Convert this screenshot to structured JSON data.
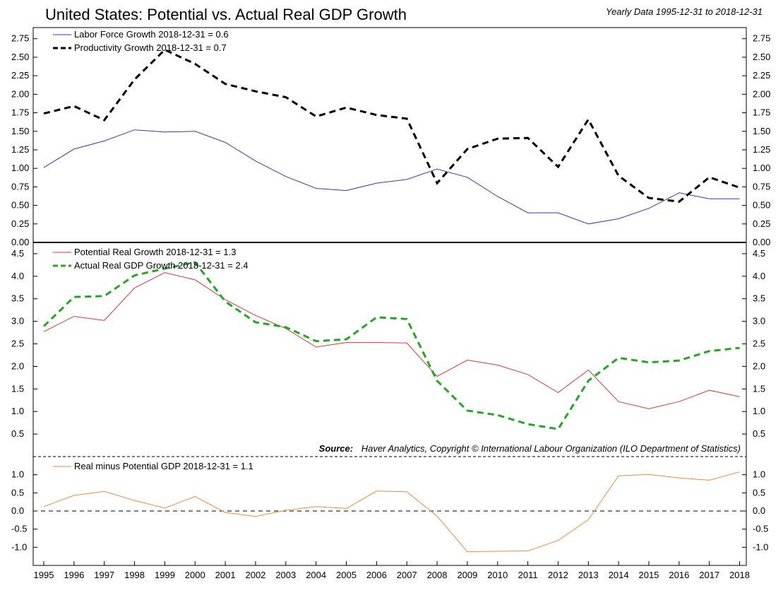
{
  "title": "United States: Potential vs. Actual Real GDP Growth",
  "subtitle": "Yearly Data 1995-12-31 to 2018-12-31",
  "source_label": "Source:",
  "source_text": "Haver Analytics, Copyright © International Labour Organization (ILO Department of Statistics)",
  "colors": {
    "labor": "#3a3aa8",
    "productivity": "#000000",
    "potential": "#d43a3a",
    "actual": "#22a822",
    "diff": "#f08c3c"
  },
  "chart_data": [
    {
      "type": "line",
      "panel": "top",
      "categories": [
        "1995",
        "1996",
        "1997",
        "1998",
        "1999",
        "2000",
        "2001",
        "2002",
        "2003",
        "2004",
        "2005",
        "2006",
        "2007",
        "2008",
        "2009",
        "2010",
        "2011",
        "2012",
        "2013",
        "2014",
        "2015",
        "2016",
        "2017",
        "2018"
      ],
      "ylim": [
        0,
        2.9
      ],
      "ticks": [
        "0.00",
        "0.25",
        "0.50",
        "0.75",
        "1.00",
        "1.25",
        "1.50",
        "1.75",
        "2.00",
        "2.25",
        "2.50",
        "2.75"
      ],
      "zero_line": true,
      "legend": "top-left",
      "series": [
        {
          "name": "Labor Force Growth 2018-12-31 = 0.6",
          "color_key": "labor",
          "style": "solid",
          "values": [
            1.01,
            1.26,
            1.37,
            1.52,
            1.49,
            1.5,
            1.35,
            1.1,
            0.89,
            0.73,
            0.7,
            0.8,
            0.85,
            0.99,
            0.88,
            0.62,
            0.4,
            0.4,
            0.25,
            0.32,
            0.46,
            0.67,
            0.59,
            0.59
          ]
        },
        {
          "name": "Productivity Growth 2018-12-31 = 0.7",
          "color_key": "productivity",
          "style": "dashed",
          "values": [
            1.74,
            1.84,
            1.65,
            2.2,
            2.6,
            2.41,
            2.14,
            2.04,
            1.96,
            1.7,
            1.82,
            1.72,
            1.67,
            0.8,
            1.26,
            1.4,
            1.41,
            1.02,
            1.66,
            0.9,
            0.6,
            0.55,
            0.88,
            0.74
          ]
        }
      ]
    },
    {
      "type": "line",
      "panel": "middle",
      "categories": [
        "1995",
        "1996",
        "1997",
        "1998",
        "1999",
        "2000",
        "2001",
        "2002",
        "2003",
        "2004",
        "2005",
        "2006",
        "2007",
        "2008",
        "2009",
        "2010",
        "2011",
        "2012",
        "2013",
        "2014",
        "2015",
        "2016",
        "2017",
        "2018"
      ],
      "ylim": [
        0.0,
        4.75
      ],
      "ticks": [
        "0.5",
        "1.0",
        "1.5",
        "2.0",
        "2.5",
        "3.0",
        "3.5",
        "4.0",
        "4.5"
      ],
      "legend": "top-left",
      "series": [
        {
          "name": "Potential Real Growth 2018-12-31 = 1.3",
          "color_key": "potential",
          "style": "solid",
          "values": [
            2.77,
            3.11,
            3.02,
            3.74,
            4.08,
            3.92,
            3.48,
            3.13,
            2.84,
            2.43,
            2.53,
            2.53,
            2.52,
            1.78,
            2.14,
            2.03,
            1.82,
            1.42,
            1.92,
            1.22,
            1.06,
            1.22,
            1.47,
            1.33
          ]
        },
        {
          "name": "Actual Real GDP Growth 2018-12-31 = 2.4",
          "color_key": "actual",
          "style": "dashed",
          "values": [
            2.89,
            3.54,
            3.56,
            4.02,
            4.17,
            4.31,
            3.44,
            2.98,
            2.87,
            2.56,
            2.6,
            3.09,
            3.05,
            1.68,
            1.02,
            0.92,
            0.72,
            0.61,
            1.68,
            2.19,
            2.09,
            2.13,
            2.34,
            2.41
          ]
        }
      ]
    },
    {
      "type": "line",
      "panel": "bottom",
      "categories": [
        "1995",
        "1996",
        "1997",
        "1998",
        "1999",
        "2000",
        "2001",
        "2002",
        "2003",
        "2004",
        "2005",
        "2006",
        "2007",
        "2008",
        "2009",
        "2010",
        "2011",
        "2012",
        "2013",
        "2014",
        "2015",
        "2016",
        "2017",
        "2018"
      ],
      "ylim": [
        -1.5,
        1.5
      ],
      "ticks": [
        "-1.0",
        "-0.5",
        "0.0",
        "0.5",
        "1.0"
      ],
      "zero_line": true,
      "legend": "top-left",
      "series": [
        {
          "name": "Real minus Potential GDP 2018-12-31 = 1.1",
          "color_key": "diff",
          "style": "solid",
          "values": [
            0.12,
            0.43,
            0.54,
            0.29,
            0.08,
            0.4,
            -0.04,
            -0.15,
            0.02,
            0.12,
            0.07,
            0.55,
            0.53,
            -0.14,
            -1.12,
            -1.11,
            -1.1,
            -0.81,
            -0.24,
            0.97,
            1.01,
            0.91,
            0.85,
            1.08
          ]
        }
      ]
    }
  ]
}
